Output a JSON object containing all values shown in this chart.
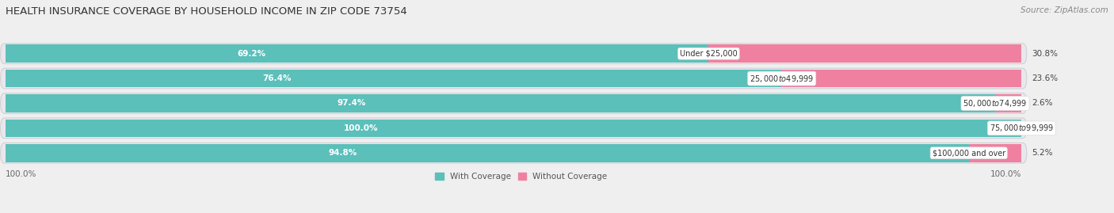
{
  "title": "HEALTH INSURANCE COVERAGE BY HOUSEHOLD INCOME IN ZIP CODE 73754",
  "source": "Source: ZipAtlas.com",
  "categories": [
    "Under $25,000",
    "$25,000 to $49,999",
    "$50,000 to $74,999",
    "$75,000 to $99,999",
    "$100,000 and over"
  ],
  "with_coverage": [
    69.2,
    76.4,
    97.4,
    100.0,
    94.8
  ],
  "without_coverage": [
    30.8,
    23.6,
    2.6,
    0.0,
    5.2
  ],
  "color_with": "#5BBFBA",
  "color_without": "#F080A0",
  "bar_background": "#E8E8EC",
  "background_color": "#EFEFEF",
  "legend_with": "With Coverage",
  "legend_without": "Without Coverage",
  "x_tick_left": "100.0%",
  "x_tick_right": "100.0%",
  "title_fontsize": 9.5,
  "label_fontsize": 7.5,
  "cat_fontsize": 7.0,
  "tick_fontsize": 7.5,
  "source_fontsize": 7.5
}
